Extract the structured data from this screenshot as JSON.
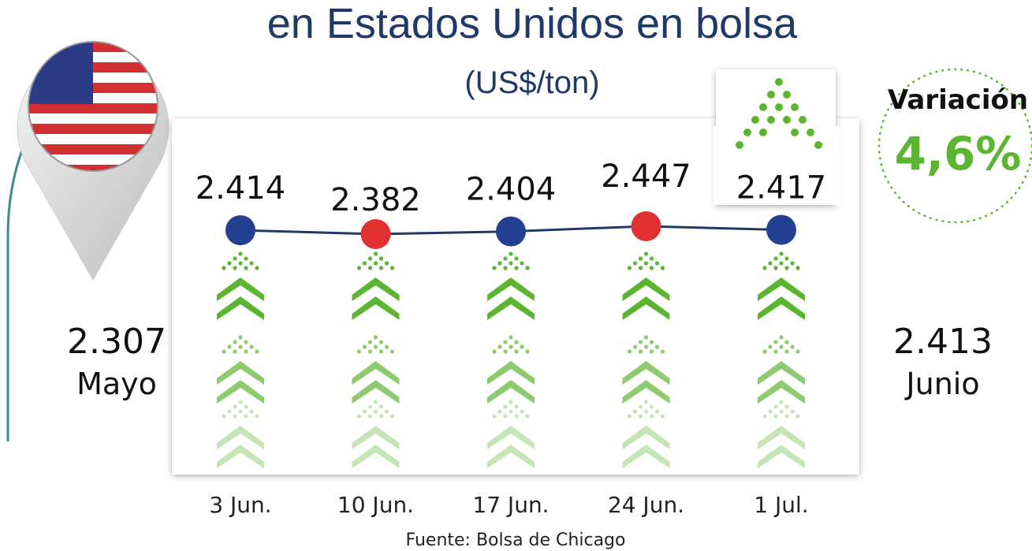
{
  "chart_data": {
    "type": "line",
    "title": "en Estados Unidos en bolsa",
    "subtitle": "(US$/ton)",
    "categories": [
      "3 Jun.",
      "10 Jun.",
      "17 Jun.",
      "24 Jun.",
      "1 Jul."
    ],
    "values": [
      2414,
      2382,
      2404,
      2447,
      2417
    ],
    "value_labels": [
      "2.414",
      "2.382",
      "2.404",
      "2.447",
      "2.417"
    ],
    "color": "#1f3a68",
    "point_colors": [
      "#233f8f",
      "#e03030",
      "#233f8f",
      "#e03030",
      "#233f8f"
    ],
    "variation": {
      "label": "Variación",
      "value": "4,6%"
    },
    "left_summary": {
      "value": "2.307",
      "label": "Mayo"
    },
    "right_summary": {
      "value": "2.413",
      "label": "Junio"
    },
    "source": "Fuente: Bolsa de Chicago"
  }
}
